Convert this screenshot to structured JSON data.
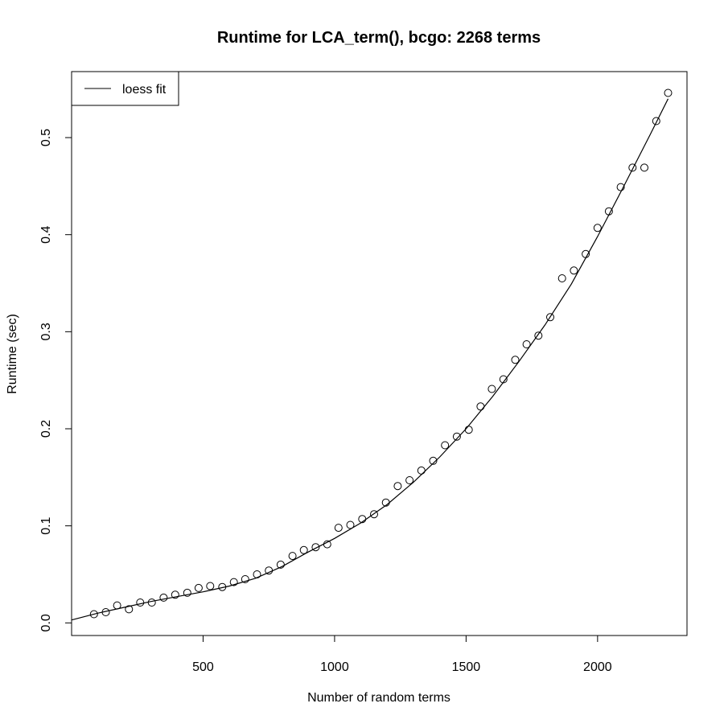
{
  "chart_data": {
    "type": "scatter",
    "title": "Runtime for LCA_term(), bcgo: 2268 terms",
    "xlabel": "Number of random terms",
    "ylabel": "Runtime (sec)",
    "xlim": [
      0,
      2340
    ],
    "ylim": [
      -0.013,
      0.568
    ],
    "xticks": [
      500,
      1000,
      1500,
      2000
    ],
    "xtick_labels": [
      "500",
      "1000",
      "1500",
      "2000"
    ],
    "yticks": [
      0.0,
      0.1,
      0.2,
      0.3,
      0.4,
      0.5
    ],
    "ytick_labels": [
      "0.0",
      "0.1",
      "0.2",
      "0.3",
      "0.4",
      "0.5"
    ],
    "grid": false,
    "legend": {
      "position": "top-left",
      "entries": [
        {
          "label": "loess fit",
          "symbol": "line"
        }
      ]
    },
    "series": [
      {
        "name": "",
        "kind": "points",
        "marker": "open-circle",
        "x": [
          85,
          130,
          173,
          218,
          261,
          305,
          350,
          394,
          440,
          483,
          527,
          573,
          617,
          660,
          705,
          750,
          795,
          840,
          883,
          928,
          972,
          1015,
          1060,
          1105,
          1150,
          1195,
          1240,
          1285,
          1330,
          1375,
          1420,
          1465,
          1510,
          1555,
          1598,
          1642,
          1687,
          1730,
          1775,
          1820,
          1865,
          1910,
          1955,
          2000,
          2043,
          2088,
          2133,
          2178,
          2223,
          2268
        ],
        "y": [
          0.009,
          0.011,
          0.018,
          0.014,
          0.021,
          0.021,
          0.026,
          0.029,
          0.031,
          0.036,
          0.038,
          0.037,
          0.042,
          0.045,
          0.05,
          0.054,
          0.06,
          0.069,
          0.075,
          0.078,
          0.081,
          0.098,
          0.101,
          0.107,
          0.112,
          0.124,
          0.141,
          0.147,
          0.157,
          0.167,
          0.183,
          0.192,
          0.199,
          0.223,
          0.241,
          0.251,
          0.271,
          0.287,
          0.296,
          0.315,
          0.355,
          0.363,
          0.38,
          0.407,
          0.424,
          0.449,
          0.469,
          0.469,
          0.517,
          0.546
        ]
      },
      {
        "name": "loess fit",
        "kind": "line",
        "x": [
          0,
          100,
          200,
          300,
          400,
          500,
          600,
          700,
          800,
          900,
          1000,
          1100,
          1200,
          1300,
          1400,
          1500,
          1600,
          1700,
          1800,
          1900,
          2000,
          2100,
          2200,
          2268
        ],
        "y": [
          0.003,
          0.01,
          0.016,
          0.022,
          0.027,
          0.032,
          0.038,
          0.046,
          0.058,
          0.073,
          0.087,
          0.103,
          0.122,
          0.145,
          0.171,
          0.2,
          0.233,
          0.269,
          0.307,
          0.349,
          0.398,
          0.45,
          0.503,
          0.54
        ]
      }
    ]
  }
}
